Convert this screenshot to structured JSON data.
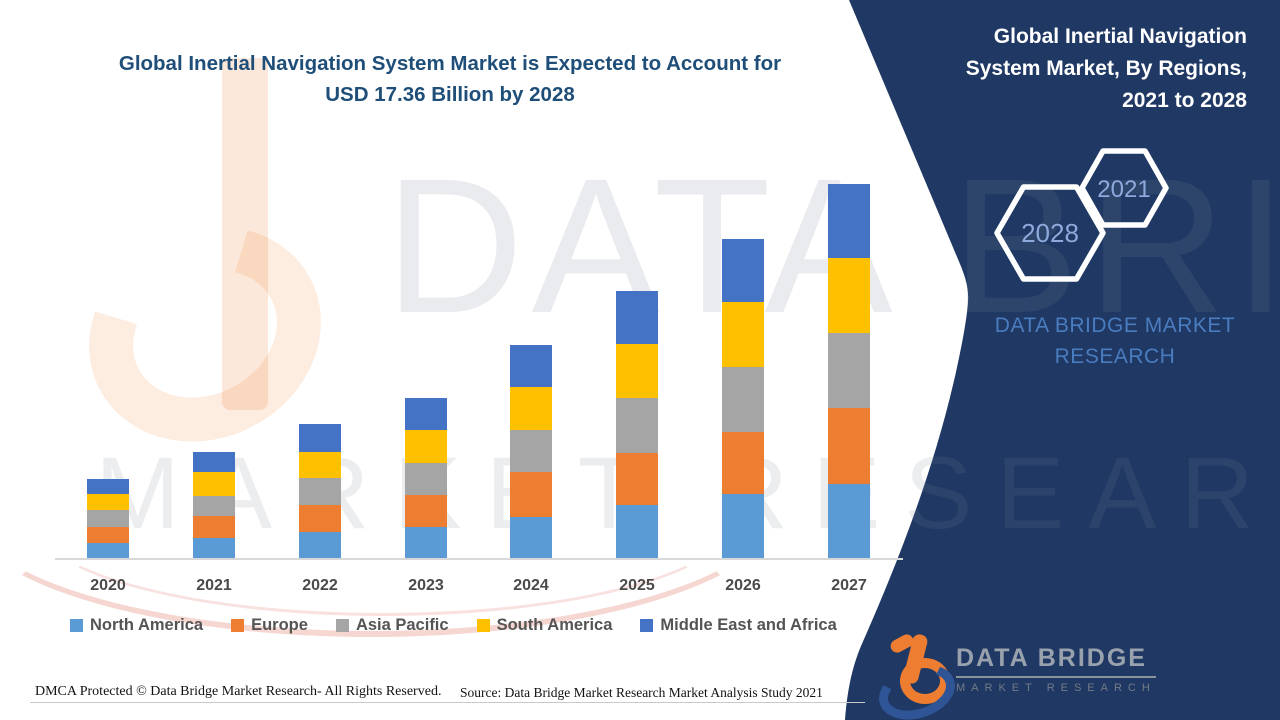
{
  "title": {
    "line1": "Global Inertial Navigation System Market is Expected to Account for",
    "line2": "USD 17.36 Billion by 2028",
    "color": "#1F4E79"
  },
  "panel": {
    "bg_color": "#1F3864",
    "heading_lines": [
      "Global Inertial Navigation",
      "System Market, By Regions,",
      "2021 to 2028"
    ],
    "badges": [
      {
        "label": "2028"
      },
      {
        "label": "2021"
      }
    ],
    "badge_stroke_color": "#FFFFFF",
    "badge_text_color": "#8EA9DB",
    "caption_lines": [
      "DATA BRIDGE MARKET",
      "RESEARCH"
    ],
    "caption_color": "#4A7CC0"
  },
  "watermark": {
    "line1": "DATA BRIDGE",
    "line2": "MARKET RESEARCH"
  },
  "chart_data": {
    "type": "bar",
    "subtype": "stacked-vertical",
    "title": "Global Inertial Navigation System Market is Expected to Account for USD 17.36 Billion by 2028",
    "categories": [
      "2020",
      "2021",
      "2022",
      "2023",
      "2024",
      "2025",
      "2026",
      "2027"
    ],
    "series": [
      {
        "name": "North America",
        "color": "#5B9BD5",
        "values": [
          16,
          21,
          27,
          32,
          42,
          54,
          65,
          75
        ]
      },
      {
        "name": "Europe",
        "color": "#ED7D31",
        "values": [
          16,
          22,
          27,
          32,
          45,
          52,
          62,
          76
        ]
      },
      {
        "name": "Asia Pacific",
        "color": "#A5A5A5",
        "values": [
          17,
          20,
          27,
          32,
          42,
          55,
          65,
          75
        ]
      },
      {
        "name": "South America",
        "color": "#FFC000",
        "values": [
          16,
          24,
          26,
          33,
          43,
          54,
          65,
          75
        ]
      },
      {
        "name": "Middle East and Africa",
        "color": "#4472C4",
        "values": [
          15,
          20,
          28,
          32,
          42,
          53,
          63,
          74
        ]
      }
    ],
    "stack_totals": [
      80,
      107,
      135,
      161,
      214,
      268,
      320,
      375
    ],
    "units": "relative stacked-segment heights in pixels (chart displays no value axis)",
    "xlabel": "",
    "ylabel": "",
    "y_axis_shown": false,
    "grid": false,
    "legend_position": "bottom"
  },
  "footer": {
    "dmca": "DMCA Protected © Data Bridge Market Research- All Rights Reserved.",
    "source": "Source: Data Bridge Market Research Market Analysis Study 2021"
  },
  "logo": {
    "name": "DATA BRIDGE",
    "tagline": "MARKET RESEARCH"
  }
}
